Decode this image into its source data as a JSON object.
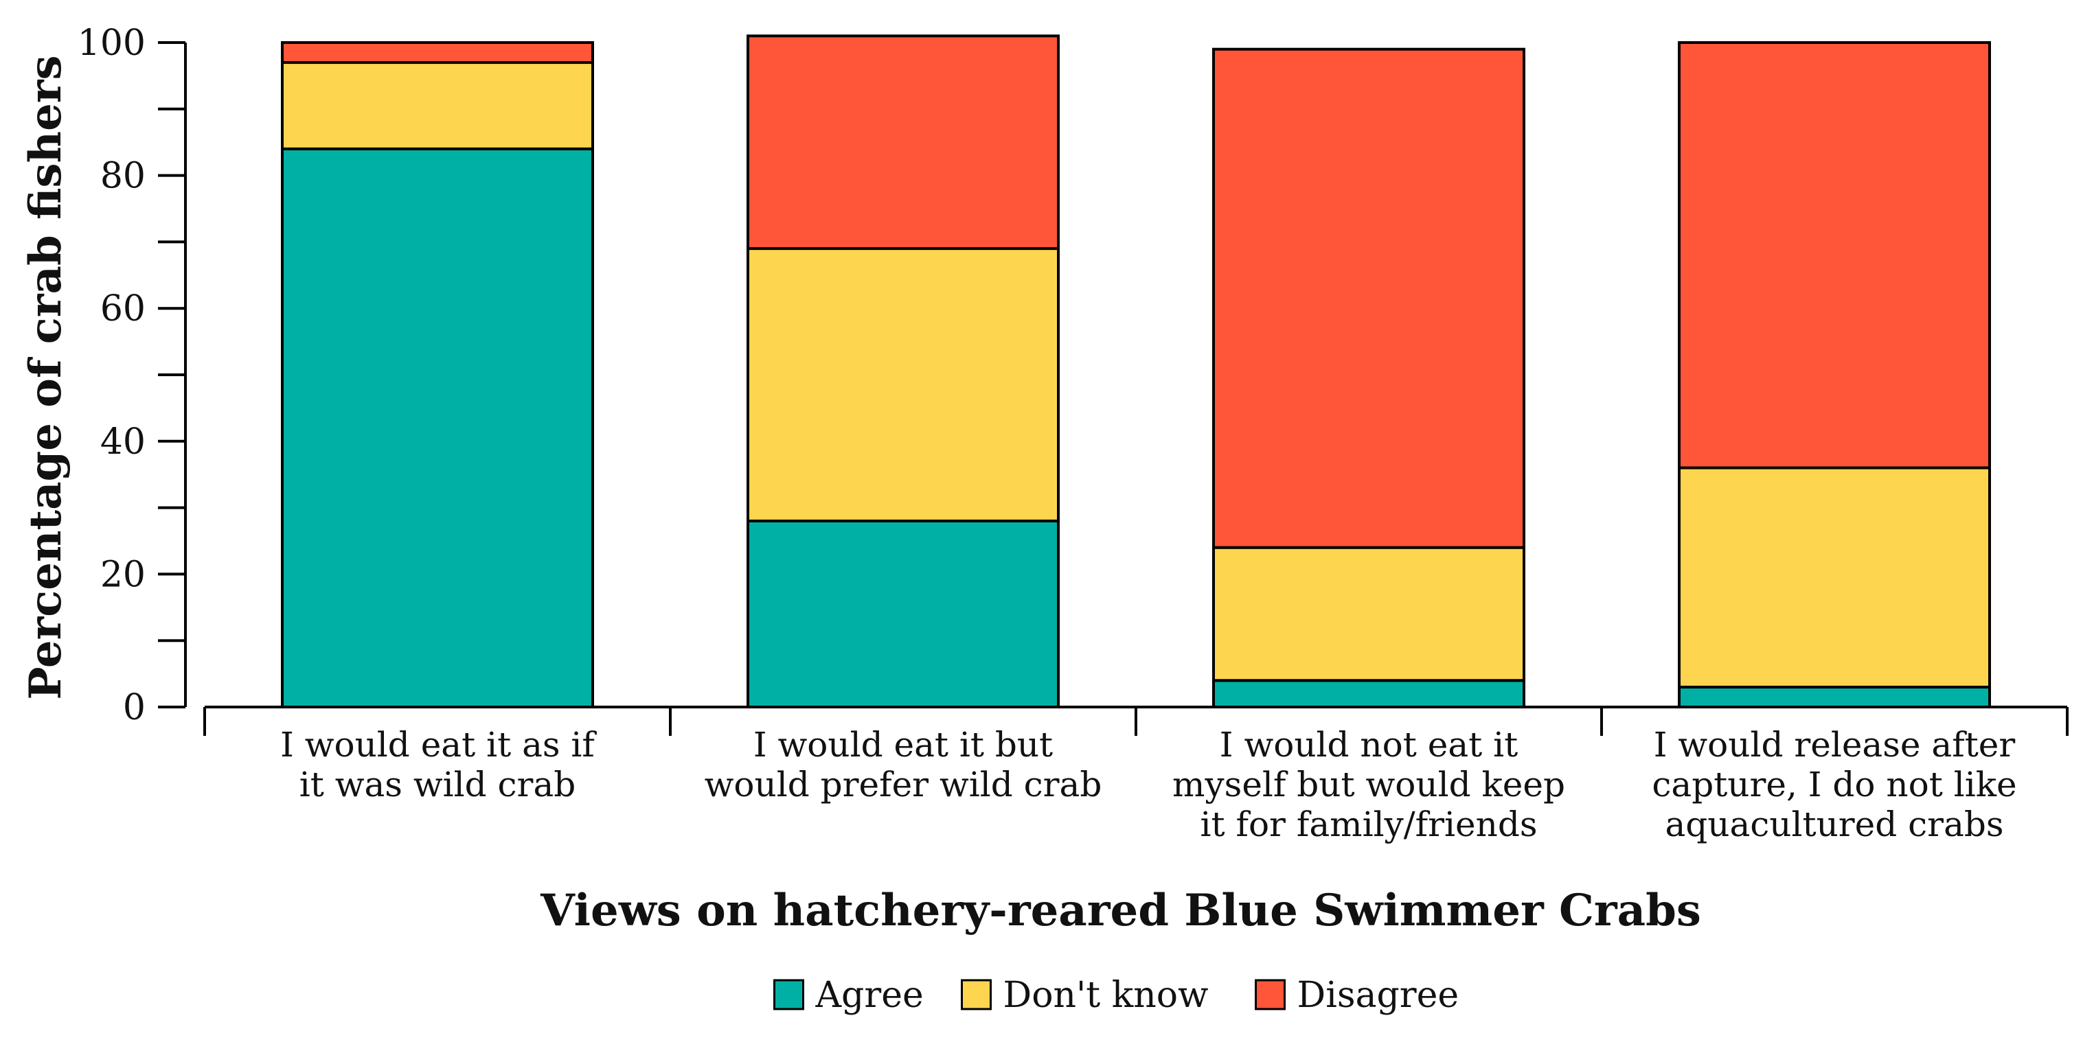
{
  "chart_data": {
    "type": "bar",
    "stacked": true,
    "categories": [
      [
        "I would eat it as if",
        "it was wild crab"
      ],
      [
        "I would eat it but",
        "would prefer wild crab"
      ],
      [
        "I would not eat it",
        "myself but would keep",
        "it for family/friends"
      ],
      [
        "I would release after",
        "capture, I do not like",
        "aquacultured crabs"
      ]
    ],
    "series": [
      {
        "name": "Agree",
        "color": "#00b0a4",
        "values": [
          84,
          28,
          4,
          3
        ]
      },
      {
        "name": "Don't know",
        "color": "#fdd54f",
        "values": [
          13,
          41,
          20,
          33
        ]
      },
      {
        "name": "Disagree",
        "color": "#ff5538",
        "values": [
          3,
          32,
          75,
          64
        ]
      }
    ],
    "xlabel": "Views on hatchery-reared Blue Swimmer Crabs",
    "ylabel": "Percentage of crab fishers",
    "ylim": [
      0,
      100
    ],
    "yticks": [
      0,
      20,
      40,
      60,
      80,
      100
    ],
    "legend_position": "bottom-center",
    "grid": false
  }
}
